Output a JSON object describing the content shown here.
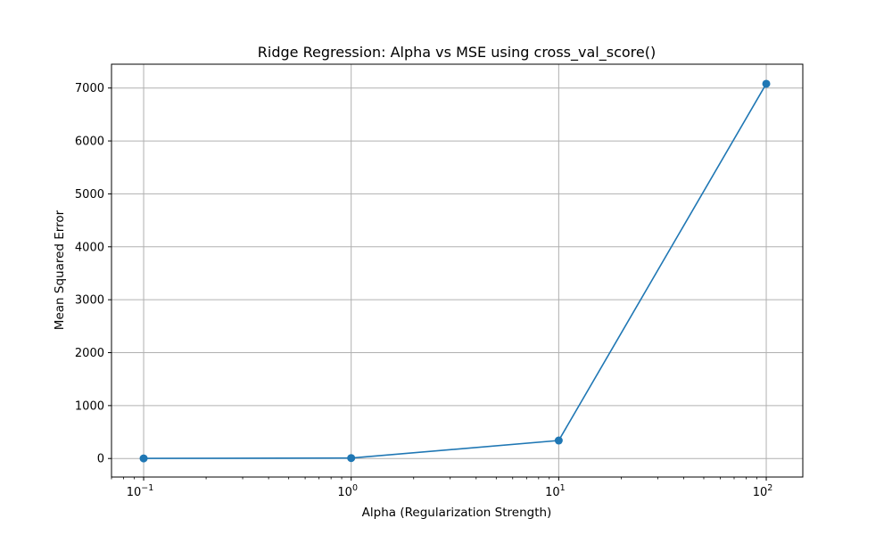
{
  "chart_data": {
    "type": "line",
    "title": "Ridge Regression: Alpha vs MSE using cross_val_score()",
    "xlabel": "Alpha (Regularization Strength)",
    "ylabel": "Mean Squared Error",
    "xscale": "log",
    "xlim": [
      0.07,
      150
    ],
    "ylim": [
      -350,
      7450
    ],
    "x_ticks": [
      {
        "value": 0.1,
        "base": "10",
        "exp": "−1"
      },
      {
        "value": 1,
        "base": "10",
        "exp": "0"
      },
      {
        "value": 10,
        "base": "10",
        "exp": "1"
      },
      {
        "value": 100,
        "base": "10",
        "exp": "2"
      }
    ],
    "y_ticks": [
      0,
      1000,
      2000,
      3000,
      4000,
      5000,
      6000,
      7000
    ],
    "grid": true,
    "series": [
      {
        "color": "#1f77b4",
        "marker": "circle",
        "x": [
          0.1,
          1,
          10,
          100
        ],
        "y": [
          2,
          9,
          340,
          7080
        ]
      }
    ]
  }
}
